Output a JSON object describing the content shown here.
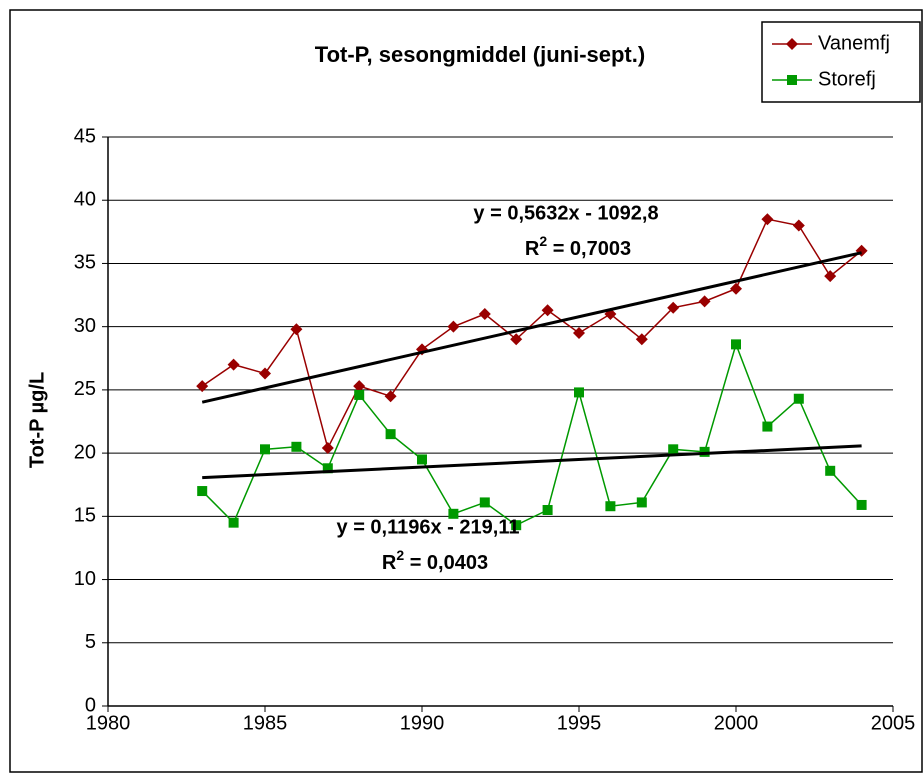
{
  "chart_data": {
    "type": "line",
    "title": "Tot-P, sesongmiddel (juni-sept.)",
    "y_label": "Tot-P µg/L",
    "x": [
      1983,
      1984,
      1985,
      1986,
      1987,
      1988,
      1989,
      1990,
      1991,
      1992,
      1993,
      1994,
      1995,
      1996,
      1997,
      1998,
      1999,
      2000,
      2001,
      2002,
      2003,
      2004
    ],
    "series": [
      {
        "name": "Vanemfj",
        "color": "#990000",
        "marker": "diamond",
        "values": [
          25.3,
          27.0,
          26.3,
          29.8,
          20.4,
          25.3,
          24.5,
          28.2,
          30.0,
          31.0,
          29.0,
          31.3,
          29.5,
          31.0,
          29.0,
          31.5,
          32.0,
          33.0,
          38.5,
          38.0,
          34.0,
          36.0
        ]
      },
      {
        "name": "Storefj",
        "color": "#009900",
        "marker": "square",
        "values": [
          17.0,
          14.5,
          20.3,
          20.5,
          18.8,
          24.6,
          21.5,
          19.5,
          15.2,
          16.1,
          14.3,
          15.5,
          24.8,
          15.8,
          16.1,
          20.3,
          20.1,
          28.6,
          22.1,
          24.3,
          18.6,
          15.9
        ]
      }
    ],
    "trendlines": [
      {
        "color": "#000000",
        "x": [
          1983,
          2004
        ],
        "values": [
          24.03,
          35.85
        ],
        "equation": "y = 0,5632x - 1092,8",
        "r2": {
          "label": "R",
          "sup": "2",
          "text": " = 0,7003"
        }
      },
      {
        "color": "#000000",
        "x": [
          1983,
          2004
        ],
        "values": [
          18.06,
          20.57
        ],
        "equation": "y = 0,1196x - 219,11",
        "r2": {
          "label": "R",
          "sup": "2",
          "text": " = 0,0403"
        }
      }
    ],
    "xlim": [
      1980,
      2005
    ],
    "xticks": [
      1980,
      1985,
      1990,
      1995,
      2000,
      2005
    ],
    "ylim": [
      0,
      45
    ],
    "yticks": [
      0,
      5,
      10,
      15,
      20,
      25,
      30,
      35,
      40,
      45
    ],
    "grid": true,
    "legend": "top-right"
  }
}
